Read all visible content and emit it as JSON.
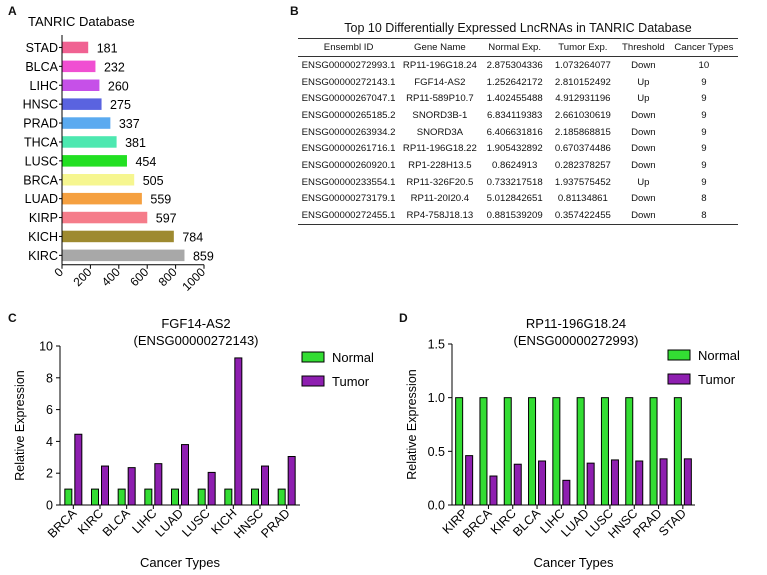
{
  "panels": {
    "a": "A",
    "b": "B",
    "c": "C",
    "d": "D"
  },
  "panel_b": {
    "title": "Top 10 Differentially Expressed LncRNAs in TANRIC Database",
    "columns": [
      "Ensembl ID",
      "Gene Name",
      "Normal Exp.",
      "Tumor Exp.",
      "Threshold",
      "Cancer Types"
    ],
    "rows": [
      [
        "ENSG00000272993.1",
        "RP11-196G18.24",
        "2.875304336",
        "1.073264077",
        "Down",
        "10"
      ],
      [
        "ENSG00000272143.1",
        "FGF14-AS2",
        "1.252642172",
        "2.810152492",
        "Up",
        "9"
      ],
      [
        "ENSG00000267047.1",
        "RP11-589P10.7",
        "1.402455488",
        "4.912931196",
        "Up",
        "9"
      ],
      [
        "ENSG00000265185.2",
        "SNORD3B-1",
        "6.834119383",
        "2.661030619",
        "Down",
        "9"
      ],
      [
        "ENSG00000263934.2",
        "SNORD3A",
        "6.406631816",
        "2.185868815",
        "Down",
        "9"
      ],
      [
        "ENSG00000261716.1",
        "RP11-196G18.22",
        "1.905432892",
        "0.670374486",
        "Down",
        "9"
      ],
      [
        "ENSG00000260920.1",
        "RP1-228H13.5",
        "0.8624913",
        "0.282378257",
        "Down",
        "9"
      ],
      [
        "ENSG00000233554.1",
        "RP11-326F20.5",
        "0.733217518",
        "1.937575452",
        "Up",
        "9"
      ],
      [
        "ENSG00000273179.1",
        "RP11-20I20.4",
        "5.012842651",
        "0.81134861",
        "Down",
        "8"
      ],
      [
        "ENSG00000272455.1",
        "RP4-758J18.13",
        "0.881539209",
        "0.357422455",
        "Down",
        "8"
      ]
    ]
  },
  "chart_data": [
    {
      "id": "A",
      "type": "bar",
      "orientation": "horizontal",
      "title": "TANRIC Database",
      "categories": [
        "STAD",
        "BLCA",
        "LIHC",
        "HNSC",
        "PRAD",
        "THCA",
        "LUSC",
        "BRCA",
        "LUAD",
        "KIRP",
        "KICH",
        "KIRC"
      ],
      "values": [
        181,
        232,
        260,
        275,
        337,
        381,
        454,
        505,
        559,
        597,
        784,
        859
      ],
      "colors": [
        "#f06292",
        "#f04fd2",
        "#c650e8",
        "#5a63e0",
        "#5aaaf0",
        "#4de8b0",
        "#22e022",
        "#f6f690",
        "#f5a040",
        "#f57c8a",
        "#9e8a30",
        "#a8a8a8"
      ],
      "xlim": [
        0,
        1000
      ],
      "xticks": [
        "0",
        "200",
        "400",
        "600",
        "800",
        "1000"
      ],
      "xlabel": "",
      "ylabel": ""
    },
    {
      "id": "C",
      "type": "bar",
      "title": "FGF14-AS2",
      "subtitle": "(ENSG00000272143)",
      "categories": [
        "BRCA",
        "KIRC",
        "BLCA",
        "LIHC",
        "LUAD",
        "LUSC",
        "KICH",
        "HNSC",
        "PRAD"
      ],
      "series": [
        {
          "name": "Normal",
          "color": "#33dd33",
          "values": [
            1,
            1,
            1,
            1,
            1,
            1,
            1,
            1,
            1
          ]
        },
        {
          "name": "Tumor",
          "color": "#8e1fb0",
          "values": [
            4.45,
            2.45,
            2.35,
            2.6,
            3.8,
            2.05,
            9.25,
            2.45,
            3.05
          ]
        }
      ],
      "ylim": [
        0,
        10
      ],
      "yticks": [
        "0",
        "2",
        "4",
        "6",
        "8",
        "10"
      ],
      "xlabel": "Cancer Types",
      "ylabel": "Relative Expression",
      "legend": "top-right"
    },
    {
      "id": "D",
      "type": "bar",
      "title": "RP11-196G18.24",
      "subtitle": "(ENSG00000272993)",
      "categories": [
        "KIRP",
        "BRCA",
        "KIRC",
        "BLCA",
        "LIHC",
        "LUAD",
        "LUSC",
        "HNSC",
        "PRAD",
        "STAD"
      ],
      "series": [
        {
          "name": "Normal",
          "color": "#33dd33",
          "values": [
            1,
            1,
            1,
            1,
            1,
            1,
            1,
            1,
            1,
            1
          ]
        },
        {
          "name": "Tumor",
          "color": "#8e1fb0",
          "values": [
            0.46,
            0.27,
            0.38,
            0.41,
            0.23,
            0.39,
            0.42,
            0.41,
            0.43,
            0.43
          ]
        }
      ],
      "ylim": [
        0,
        1.5
      ],
      "yticks": [
        "0.0",
        "0.5",
        "1.0",
        "1.5"
      ],
      "xlabel": "Cancer Types",
      "ylabel": "Relative Expression",
      "legend": "top-right"
    }
  ]
}
